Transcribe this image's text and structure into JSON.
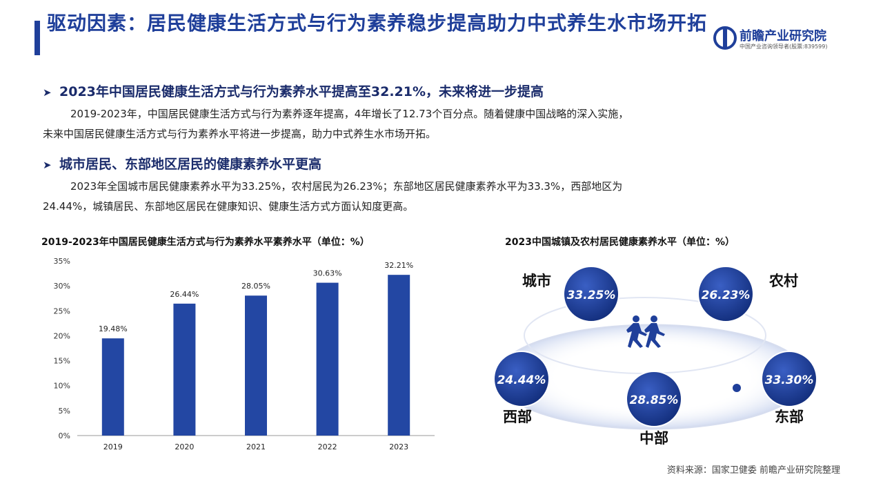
{
  "header": {
    "title": "驱动因素：居民健康生活方式与行为素养稳步提高助力中式养生水市场开拓",
    "logo_name": "前瞻产业研究院",
    "logo_sub": "中国产业咨询领导者(股票:839599)"
  },
  "section1": {
    "heading": "2023年中国居民健康生活方式与行为素养水平提高至32.21%，未来将进一步提高",
    "para_line1": "2019-2023年，中国居民健康生活方式与行为素养逐年提高，4年增长了12.73个百分点。随着健康中国战略的深入实施，",
    "para_line2": "未来中国居民健康生活方式与行为素养水平将进一步提高，助力中式养生水市场开拓。"
  },
  "section2": {
    "heading": "城市居民、东部地区居民的健康素养水平更高",
    "para_line1": "2023年全国城市居民健康素养水平为33.25%，农村居民为26.23%；东部地区居民健康素养水平为33.3%，西部地区为",
    "para_line2": "24.44%，城镇居民、东部地区居民在健康知识、健康生活方式方面认知度更高。"
  },
  "chart_data": [
    {
      "type": "bar",
      "title": "2019-2023年中国居民健康生活方式与行为素养水平素养水平（单位：%）",
      "categories": [
        "2019",
        "2020",
        "2021",
        "2022",
        "2023"
      ],
      "values": [
        19.48,
        26.44,
        28.05,
        30.63,
        32.21
      ],
      "value_labels": [
        "19.48%",
        "26.44%",
        "28.05%",
        "30.63%",
        "32.21%"
      ],
      "ylim": [
        0,
        35
      ],
      "yticks": [
        "0%",
        "5%",
        "10%",
        "15%",
        "20%",
        "25%",
        "30%",
        "35%"
      ],
      "bar_color": "#2347a3",
      "grid": false
    },
    {
      "type": "bubble",
      "title": "2023中国城镇及农村居民健康素养水平（单位：%）",
      "items": [
        {
          "label": "城市",
          "value": "33.25%"
        },
        {
          "label": "农村",
          "value": "26.23%"
        },
        {
          "label": "西部",
          "value": "24.44%"
        },
        {
          "label": "中部",
          "value": "28.85%"
        },
        {
          "label": "东部",
          "value": "33.30%"
        }
      ],
      "bubble_color": "#1f3f9a"
    }
  ],
  "footer": {
    "source": "资料来源：国家卫健委  前瞻产业研究院整理"
  },
  "colors": {
    "primary": "#1f3f9a",
    "bar": "#2347a3"
  },
  "icons": {
    "bullet": "arrow-bullet-icon",
    "people": "running-people-icon",
    "logo": "logo-mark-icon"
  }
}
